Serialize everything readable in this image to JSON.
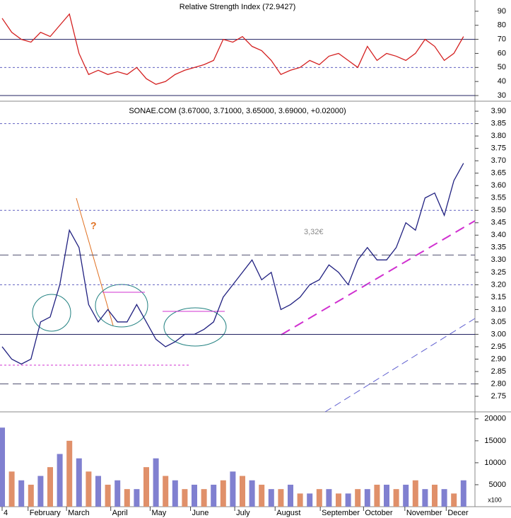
{
  "chart_data": [
    {
      "type": "line",
      "title": "Relative Strength Index (72.9427)",
      "color": "#d42020",
      "values": [
        85,
        75,
        70,
        68,
        75,
        72,
        80,
        88,
        60,
        45,
        48,
        45,
        47,
        45,
        50,
        42,
        38,
        40,
        45,
        48,
        50,
        52,
        55,
        70,
        68,
        72,
        65,
        62,
        55,
        45,
        48,
        50,
        55,
        52,
        58,
        60,
        55,
        50,
        65,
        55,
        60,
        58,
        55,
        60,
        70,
        65,
        55,
        60,
        72
      ],
      "ylim": [
        27.5,
        98
      ],
      "yticks": [
        30,
        40,
        50,
        60,
        70,
        80,
        90
      ],
      "hlines": [
        {
          "value": 70,
          "style": "solid"
        },
        {
          "value": 50,
          "style": "dotted"
        },
        {
          "value": 30,
          "style": "solid"
        }
      ]
    },
    {
      "type": "line",
      "title": "SONAE.COM (3.67000, 3.71000, 3.65000, 3.69000, +0.02000)",
      "color": "#202080",
      "values": [
        2.95,
        2.9,
        2.88,
        2.9,
        3.05,
        3.07,
        3.2,
        3.42,
        3.35,
        3.12,
        3.05,
        3.1,
        3.05,
        3.05,
        3.12,
        3.05,
        2.98,
        2.95,
        2.97,
        3.0,
        3.0,
        3.02,
        3.05,
        3.15,
        3.2,
        3.25,
        3.3,
        3.22,
        3.25,
        3.1,
        3.12,
        3.15,
        3.2,
        3.22,
        3.28,
        3.25,
        3.2,
        3.3,
        3.35,
        3.3,
        3.3,
        3.35,
        3.45,
        3.42,
        3.55,
        3.57,
        3.48,
        3.62,
        3.69
      ],
      "ylim": [
        2.693,
        3.926
      ],
      "yticks": [
        {
          "value": 3.9,
          "label": "3.90"
        },
        {
          "value": 3.85,
          "label": "3.85"
        },
        {
          "value": 3.8,
          "label": "3.80"
        },
        {
          "value": 3.75,
          "label": "3.75"
        },
        {
          "value": 3.7,
          "label": "3.70"
        },
        {
          "value": 3.65,
          "label": "3.65"
        },
        {
          "value": 3.6,
          "label": "3.60"
        },
        {
          "value": 3.55,
          "label": "3.55"
        },
        {
          "value": 3.5,
          "label": "3.50"
        },
        {
          "value": 3.45,
          "label": "3.45"
        },
        {
          "value": 3.4,
          "label": "3.40"
        },
        {
          "value": 3.35,
          "label": "3.35"
        },
        {
          "value": 3.3,
          "label": "3.30"
        },
        {
          "value": 3.25,
          "label": "3.25"
        },
        {
          "value": 3.2,
          "label": "3.20"
        },
        {
          "value": 3.15,
          "label": "3.15"
        },
        {
          "value": 3.1,
          "label": "3.10"
        },
        {
          "value": 3.05,
          "label": "3.05"
        },
        {
          "value": 3.0,
          "label": "3.00"
        },
        {
          "value": 2.95,
          "label": "2.95"
        },
        {
          "value": 2.9,
          "label": "2.90"
        },
        {
          "value": 2.85,
          "label": "2.85"
        },
        {
          "value": 2.8,
          "label": "2.80"
        },
        {
          "value": 2.75,
          "label": "2.75"
        }
      ],
      "hlines": [
        {
          "value": 3.85,
          "style": "dotted"
        },
        {
          "value": 3.5,
          "style": "dotted"
        },
        {
          "value": 3.32,
          "style": "dashed"
        },
        {
          "value": 3.2,
          "style": "dotted"
        },
        {
          "value": 3.0,
          "style": "solid"
        },
        {
          "value": 2.8,
          "style": "dashed"
        }
      ],
      "annotations": [
        "3,32€",
        "?"
      ]
    },
    {
      "type": "bar",
      "color": "#8080d0",
      "unit_label": "x100",
      "values": [
        18000,
        8000,
        6000,
        5000,
        7000,
        9000,
        12000,
        15000,
        11000,
        8000,
        7000,
        5000,
        6000,
        4000,
        4000,
        9000,
        11000,
        7000,
        6000,
        4000,
        5000,
        4000,
        5000,
        6000,
        8000,
        7000,
        6000,
        5000,
        4000,
        4000,
        5000,
        3000,
        3000,
        4000,
        4000,
        3000,
        3000,
        4000,
        4000,
        5000,
        5000,
        4000,
        5000,
        6000,
        4000,
        5000,
        4000,
        3000,
        6000
      ],
      "ylim": [
        0,
        21100
      ],
      "yticks": [
        5000,
        10000,
        15000,
        20000
      ],
      "xticks": [
        {
          "value": 0,
          "label": "4"
        },
        {
          "value": 2.7,
          "label": "February"
        },
        {
          "value": 6.7,
          "label": "March"
        },
        {
          "value": 11.3,
          "label": "April"
        },
        {
          "value": 15.4,
          "label": "May"
        },
        {
          "value": 19.6,
          "label": "June"
        },
        {
          "value": 24.2,
          "label": "July"
        },
        {
          "value": 28.4,
          "label": "August"
        },
        {
          "value": 33.1,
          "label": "September"
        },
        {
          "value": 37.6,
          "label": "October"
        },
        {
          "value": 41.9,
          "label": "November"
        },
        {
          "value": 46.2,
          "label": "Decer"
        }
      ]
    }
  ]
}
